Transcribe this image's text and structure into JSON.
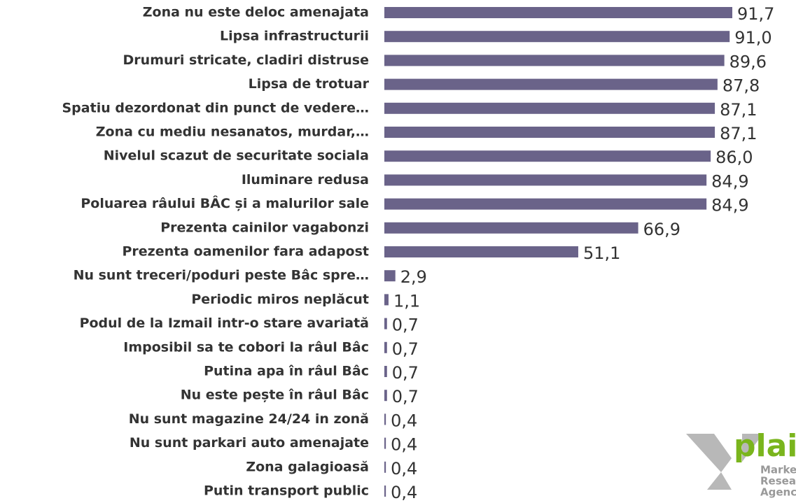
{
  "chart_data": {
    "type": "hbar",
    "categories": [
      "Zona nu este deloc amenajata",
      "Lipsa infrastructurii",
      "Drumuri stricate, cladiri distruse",
      "Lipsa de trotuar",
      "Spatiu dezordonat din punct de vedere…",
      "Zona cu mediu nesanatos, murdar,…",
      "Nivelul scazut de securitate sociala",
      "Iluminare redusa",
      "Poluarea râului BÂC și a malurilor sale",
      "Prezenta cainilor vagabonzi",
      "Prezenta oamenilor fara adapost",
      "Nu sunt treceri/poduri peste Bâc spre…",
      "Periodic miros neplăcut",
      "Podul de la Izmail intr-o stare avariată",
      "Imposibil sa te cobori la râul Bâc",
      "Putina apa în râul Bâc",
      "Nu este pește în râul Bâc",
      "Nu sunt magazine 24/24 in zonă",
      "Nu sunt parkari auto amenajate",
      "Zona galagioasă",
      "Putin transport public"
    ],
    "values": [
      91.7,
      91.0,
      89.6,
      87.8,
      87.1,
      87.1,
      86.0,
      84.9,
      84.9,
      66.9,
      51.1,
      2.9,
      1.1,
      0.7,
      0.7,
      0.7,
      0.7,
      0.4,
      0.4,
      0.4,
      0.4
    ],
    "value_labels": [
      "91,7",
      "91,0",
      "89,6",
      "87,8",
      "87,1",
      "87,1",
      "86,0",
      "84,9",
      "84,9",
      "66,9",
      "51,1",
      "2,9",
      "1,1",
      "0,7",
      "0,7",
      "0,7",
      "0,7",
      "0,4",
      "0,4",
      "0,4",
      "0,4"
    ],
    "color": "#6a6389",
    "xlim": [
      0,
      100
    ]
  },
  "logo": {
    "name": "plain",
    "lines": [
      "Marketing",
      "Research",
      "Agency"
    ]
  }
}
